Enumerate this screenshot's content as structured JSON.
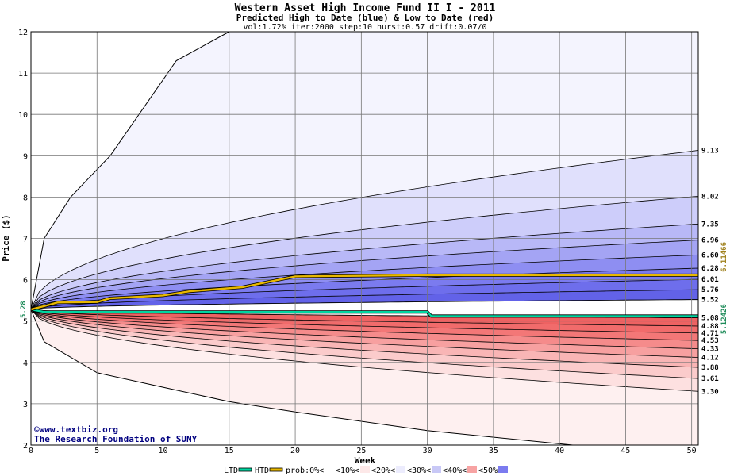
{
  "chart_data": {
    "type": "area",
    "title": "Western Asset High Income Fund II I - 2011",
    "subtitle": "Predicted High to Date (blue) &  Low to Date (red)",
    "params": "vol:1.72% iter:2000 step:10 hurst:0.57 drift:0.07/0",
    "xlabel": "Week",
    "ylabel": "Price ($)",
    "xlim": [
      0,
      50.5
    ],
    "ylim": [
      2,
      12
    ],
    "x_ticks": [
      "0",
      "5",
      "10",
      "15",
      "20",
      "25",
      "30",
      "35",
      "40",
      "45",
      "50"
    ],
    "y_ticks": [
      "2",
      "3",
      "4",
      "5",
      "6",
      "7",
      "8",
      "9",
      "10",
      "11",
      "12"
    ],
    "grid": true,
    "start_price": "5.28",
    "start_value": 5.28,
    "end_labels_upper": [
      "9.13",
      "8.02",
      "7.35",
      "6.96",
      "6.60",
      "6.28",
      "6.01",
      "5.76",
      "5.52"
    ],
    "end_labels_lower": [
      "5.08",
      "4.88",
      "4.71",
      "4.53",
      "4.33",
      "4.12",
      "3.88",
      "3.61",
      "3.30"
    ],
    "end_values_upper": [
      9.13,
      8.02,
      7.35,
      6.96,
      6.6,
      6.28,
      6.01,
      5.76,
      5.52
    ],
    "end_values_lower": [
      5.08,
      4.88,
      4.71,
      4.53,
      4.33,
      4.12,
      3.88,
      3.61,
      3.3
    ],
    "outer_envelope_upper": [
      [
        0,
        5.28
      ],
      [
        1,
        7.0
      ],
      [
        3,
        8.0
      ],
      [
        6,
        9.0
      ],
      [
        11,
        11.3
      ],
      [
        15,
        12
      ]
    ],
    "outer_envelope_lower": [
      [
        0,
        5.28
      ],
      [
        1,
        4.5
      ],
      [
        5,
        3.75
      ],
      [
        10,
        3.4
      ],
      [
        15,
        3.05
      ],
      [
        20,
        2.8
      ],
      [
        30,
        2.35
      ],
      [
        41,
        2.0
      ]
    ],
    "right_labels": [
      "6.11466",
      "5.12426"
    ],
    "right_label_colors": [
      "#a0821e",
      "#1f8c5a"
    ],
    "htd_line": [
      [
        0,
        5.28
      ],
      [
        1,
        5.36
      ],
      [
        2,
        5.45
      ],
      [
        5,
        5.46
      ],
      [
        6,
        5.55
      ],
      [
        10,
        5.62
      ],
      [
        12,
        5.72
      ],
      [
        16,
        5.82
      ],
      [
        18,
        5.95
      ],
      [
        20,
        6.08
      ],
      [
        30,
        6.11
      ],
      [
        50.5,
        6.11
      ]
    ],
    "ltd_line": [
      [
        0,
        5.28
      ],
      [
        1,
        5.22
      ],
      [
        30,
        5.22
      ],
      [
        30.3,
        5.12
      ],
      [
        50.5,
        5.12
      ]
    ],
    "htd_color": "#e8b800",
    "ltd_color": "#00d6a0",
    "upper_band_colors": [
      "#f4f4fe",
      "#e0e0fc",
      "#cdcdfa",
      "#b8b8f7",
      "#a4a4f4",
      "#8e8ef2",
      "#7b7bef",
      "#6e6eec",
      "#6262e8"
    ],
    "lower_band_colors": [
      "#fef0f0",
      "#fde0e0",
      "#fbcbcb",
      "#f9b5b5",
      "#f7a0a0",
      "#f58b8b",
      "#f37777",
      "#f16b6b",
      "#ee6262"
    ],
    "credit": [
      "©www.textbiz.org",
      "The Research Foundation of SUNY"
    ],
    "legend": {
      "items": [
        "LTD",
        "HTD",
        "prob:0%<",
        "<10%<",
        "<20%<",
        "<30%<",
        "<40%<",
        "<50%"
      ],
      "swatch_colors": [
        "#00d6a0",
        "#e8b800",
        "#ffffff",
        "#fde8e8",
        "#ececfd",
        "#c8c8f6",
        "#f7a3a3",
        "#7b7bef"
      ]
    }
  }
}
